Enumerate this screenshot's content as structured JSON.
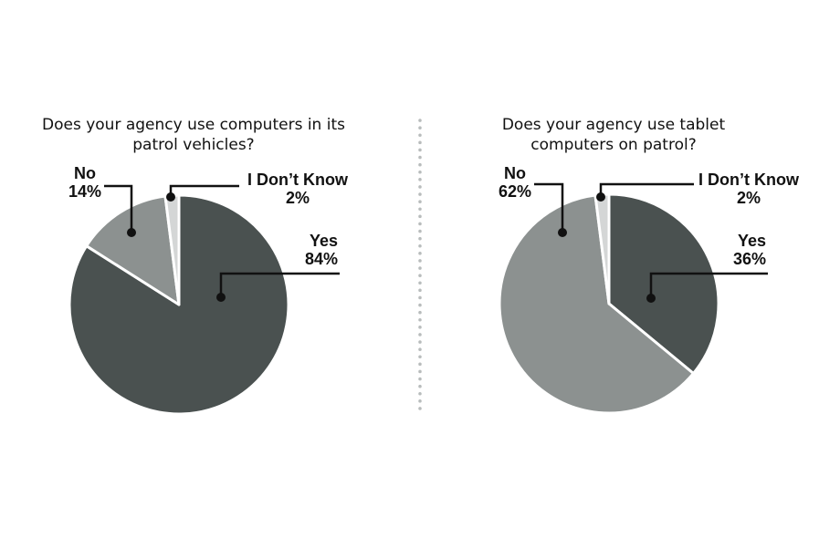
{
  "chart_data": [
    {
      "type": "pie",
      "title": "Does your agency use computers in its patrol vehicles?",
      "title_lines": [
        "Does your agency use computers in its",
        "patrol vehicles?"
      ],
      "slices": [
        {
          "label": "Yes",
          "value": 84,
          "value_label": "84%",
          "color": "#4a5150"
        },
        {
          "label": "No",
          "value": 14,
          "value_label": "14%",
          "color": "#8c9190"
        },
        {
          "label": "I Don’t Know",
          "value": 2,
          "value_label": "2%",
          "color": "#d4d6d6"
        }
      ]
    },
    {
      "type": "pie",
      "title": "Does your agency use tablet computers on patrol?",
      "title_lines": [
        "Does your agency use tablet",
        "computers on patrol?"
      ],
      "slices": [
        {
          "label": "Yes",
          "value": 36,
          "value_label": "36%",
          "color": "#4a5150"
        },
        {
          "label": "No",
          "value": 62,
          "value_label": "62%",
          "color": "#8c9190"
        },
        {
          "label": "I Don’t Know",
          "value": 2,
          "value_label": "2%",
          "color": "#d4d6d6"
        }
      ]
    }
  ]
}
